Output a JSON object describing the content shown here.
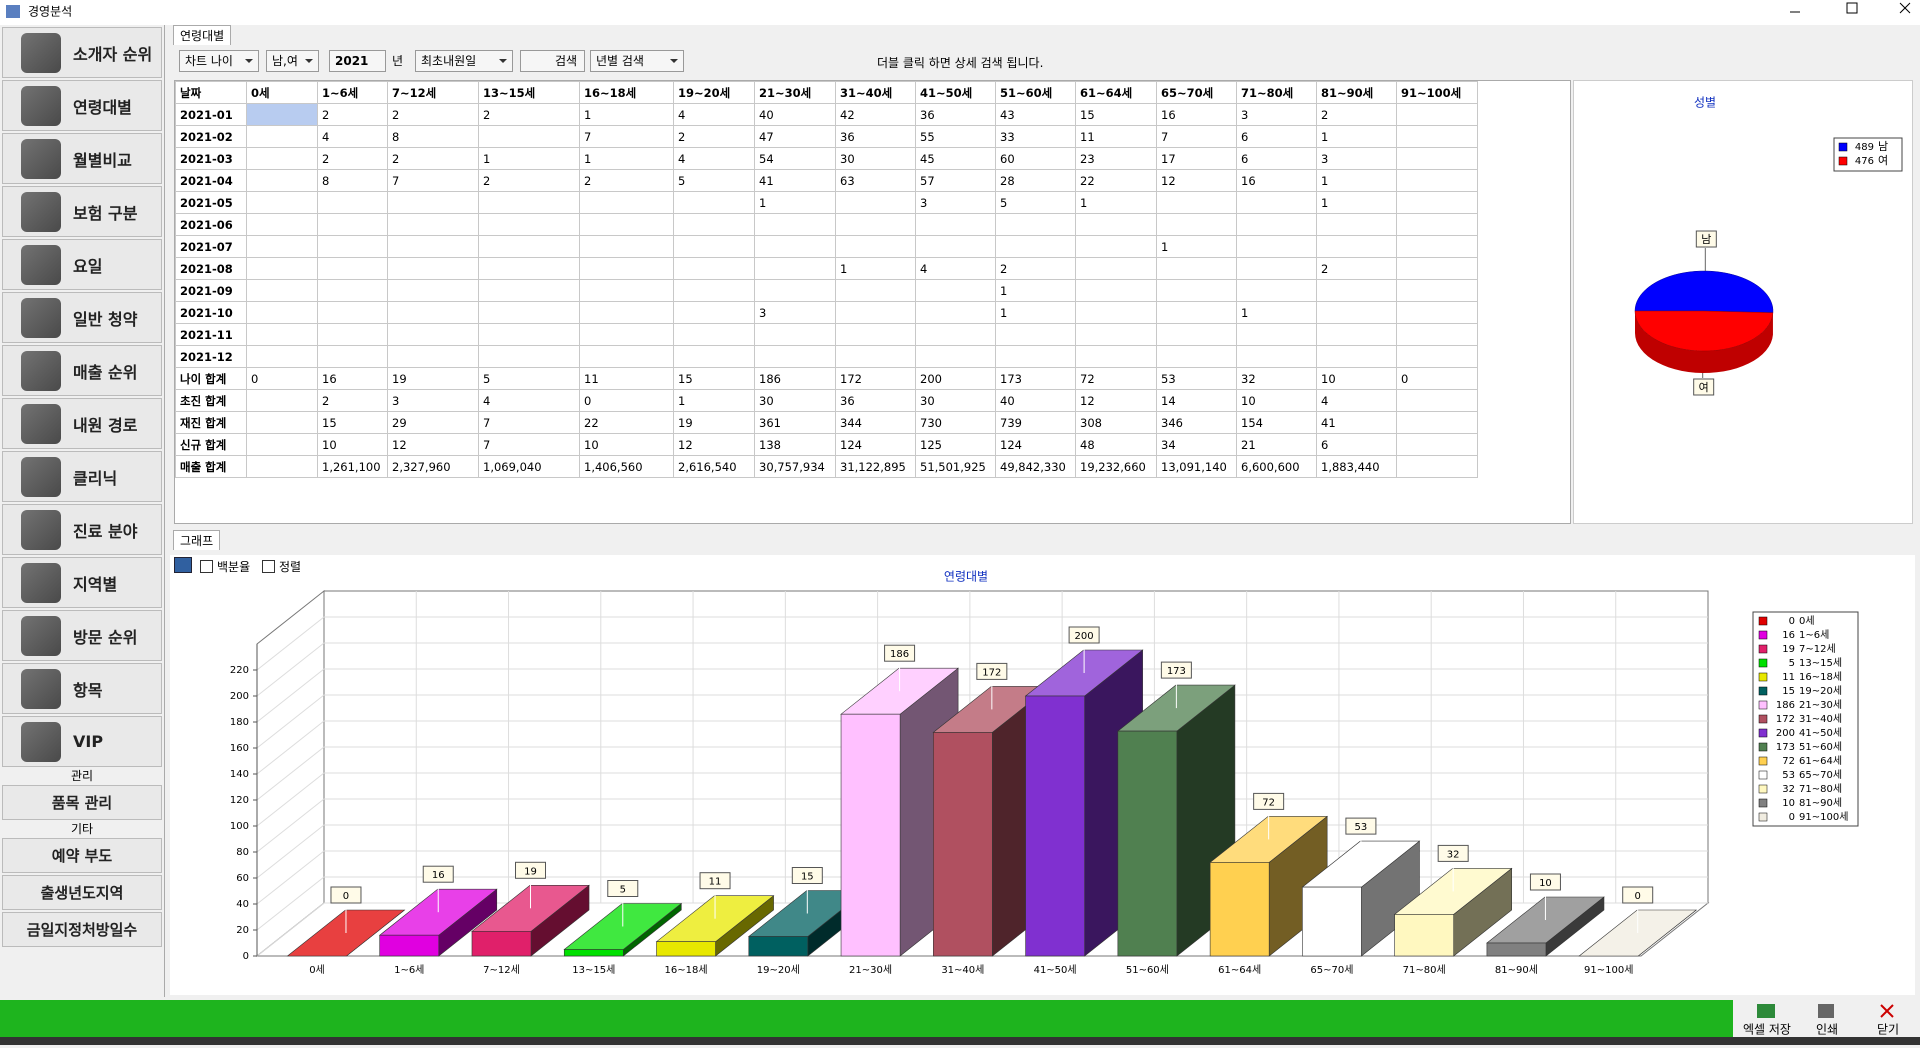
{
  "window": {
    "title": "경영분석"
  },
  "sidebar": {
    "items": [
      "소개자 순위",
      "연령대별",
      "월별비교",
      "보험 구분",
      "요일",
      "일반 청약",
      "매출 순위",
      "내원 경로",
      "클리닉",
      "진료 분야",
      "지역별",
      "방문 순위",
      "항목",
      "VIP"
    ],
    "section_management": "관리",
    "management_items": [
      "품목 관리"
    ],
    "section_other": "기타",
    "other_items": [
      "예약 부도",
      "출생년도지역",
      "금일지정처방일수"
    ]
  },
  "tabs": {
    "age": "연령대별",
    "graph": "그래프"
  },
  "toolbar": {
    "chart": "차트 나이",
    "gender": "남,여",
    "year": "2021",
    "year_unit": "년",
    "date_basis": "최초내원일",
    "search": "검색",
    "period": "년별 검색",
    "hint": "더블 클릭 하면 상세 검색 됩니다."
  },
  "table": {
    "header": [
      "날짜",
      "0세",
      "1~6세",
      "7~12세",
      "13~15세",
      "16~18세",
      "19~20세",
      "21~30세",
      "31~40세",
      "41~50세",
      "51~60세",
      "61~64세",
      "65~70세",
      "71~80세",
      "81~90세",
      "91~100세"
    ],
    "rows": [
      [
        "2021-01",
        null,
        2,
        2,
        2,
        1,
        4,
        40,
        42,
        36,
        43,
        15,
        16,
        3,
        2,
        null
      ],
      [
        "2021-02",
        null,
        4,
        8,
        null,
        7,
        2,
        47,
        36,
        55,
        33,
        11,
        7,
        6,
        1,
        null
      ],
      [
        "2021-03",
        null,
        2,
        2,
        1,
        1,
        4,
        54,
        30,
        45,
        60,
        23,
        17,
        6,
        3,
        null
      ],
      [
        "2021-04",
        null,
        8,
        7,
        2,
        2,
        5,
        41,
        63,
        57,
        28,
        22,
        12,
        16,
        1,
        null
      ],
      [
        "2021-05",
        null,
        null,
        null,
        null,
        null,
        null,
        1,
        null,
        3,
        5,
        1,
        null,
        null,
        1,
        null
      ],
      [
        "2021-06",
        null,
        null,
        null,
        null,
        null,
        null,
        null,
        null,
        null,
        null,
        null,
        null,
        null,
        null,
        null
      ],
      [
        "2021-07",
        null,
        null,
        null,
        null,
        null,
        null,
        null,
        null,
        null,
        null,
        null,
        1,
        null,
        null,
        null
      ],
      [
        "2021-08",
        null,
        null,
        null,
        null,
        null,
        null,
        null,
        1,
        4,
        2,
        null,
        null,
        null,
        2,
        null
      ],
      [
        "2021-09",
        null,
        null,
        null,
        null,
        null,
        null,
        null,
        null,
        null,
        1,
        null,
        null,
        null,
        null,
        null
      ],
      [
        "2021-10",
        null,
        null,
        null,
        null,
        null,
        null,
        3,
        null,
        null,
        1,
        null,
        null,
        1,
        null,
        null
      ],
      [
        "2021-11",
        null,
        null,
        null,
        null,
        null,
        null,
        null,
        null,
        null,
        null,
        null,
        null,
        null,
        null,
        null
      ],
      [
        "2021-12",
        null,
        null,
        null,
        null,
        null,
        null,
        null,
        null,
        null,
        null,
        null,
        null,
        null,
        null,
        null
      ],
      [
        "나이 합계",
        0,
        16,
        19,
        5,
        11,
        15,
        186,
        172,
        200,
        173,
        72,
        53,
        32,
        10,
        0
      ],
      [
        "초진 합계",
        null,
        2,
        3,
        4,
        0,
        1,
        30,
        36,
        30,
        40,
        12,
        14,
        10,
        4,
        null
      ],
      [
        "재진 합계",
        null,
        15,
        29,
        7,
        22,
        19,
        361,
        344,
        730,
        739,
        308,
        346,
        154,
        41,
        null
      ],
      [
        "신규 합계",
        null,
        10,
        12,
        7,
        10,
        12,
        138,
        124,
        125,
        124,
        48,
        34,
        21,
        6,
        null
      ],
      [
        "매출 합계",
        null,
        "1,261,100",
        "2,327,960",
        "1,069,040",
        "1,406,560",
        "2,616,540",
        "30,757,934",
        "31,122,895",
        "51,501,925",
        "49,842,330",
        "19,232,660",
        "13,091,140",
        "6,600,600",
        "1,883,440",
        null
      ]
    ]
  },
  "graph_options": {
    "percent": "백분율",
    "sort": "정렬"
  },
  "chart_data": [
    {
      "type": "pie",
      "title": "성별",
      "categories": [
        "남",
        "여"
      ],
      "values": [
        489,
        476
      ],
      "colors": [
        "#0000ff",
        "#ff0000"
      ],
      "legend": "top-right"
    },
    {
      "type": "bar",
      "title": "연령대별",
      "categories": [
        "0세",
        "1~6세",
        "7~12세",
        "13~15세",
        "16~18세",
        "19~20세",
        "21~30세",
        "31~40세",
        "41~50세",
        "51~60세",
        "61~64세",
        "65~70세",
        "71~80세",
        "81~90세",
        "91~100세"
      ],
      "values": [
        0,
        16,
        19,
        5,
        11,
        15,
        186,
        172,
        200,
        173,
        72,
        53,
        32,
        10,
        0
      ],
      "colors": [
        "#e00000",
        "#e000e0",
        "#e0206a",
        "#00e000",
        "#e8e800",
        "#006060",
        "#ffc0ff",
        "#b05060",
        "#8030d0",
        "#508050",
        "#ffd050",
        "#ffffff",
        "#fff8c0",
        "#808080",
        "#f0ece0"
      ],
      "ylim": [
        0,
        240
      ],
      "yticks": [
        0,
        20,
        40,
        60,
        80,
        100,
        120,
        140,
        160,
        180,
        200,
        220
      ],
      "grid": true,
      "legend": "right"
    }
  ],
  "footer": {
    "excel": "엑셀 저장",
    "print": "인쇄",
    "close": "닫기"
  }
}
